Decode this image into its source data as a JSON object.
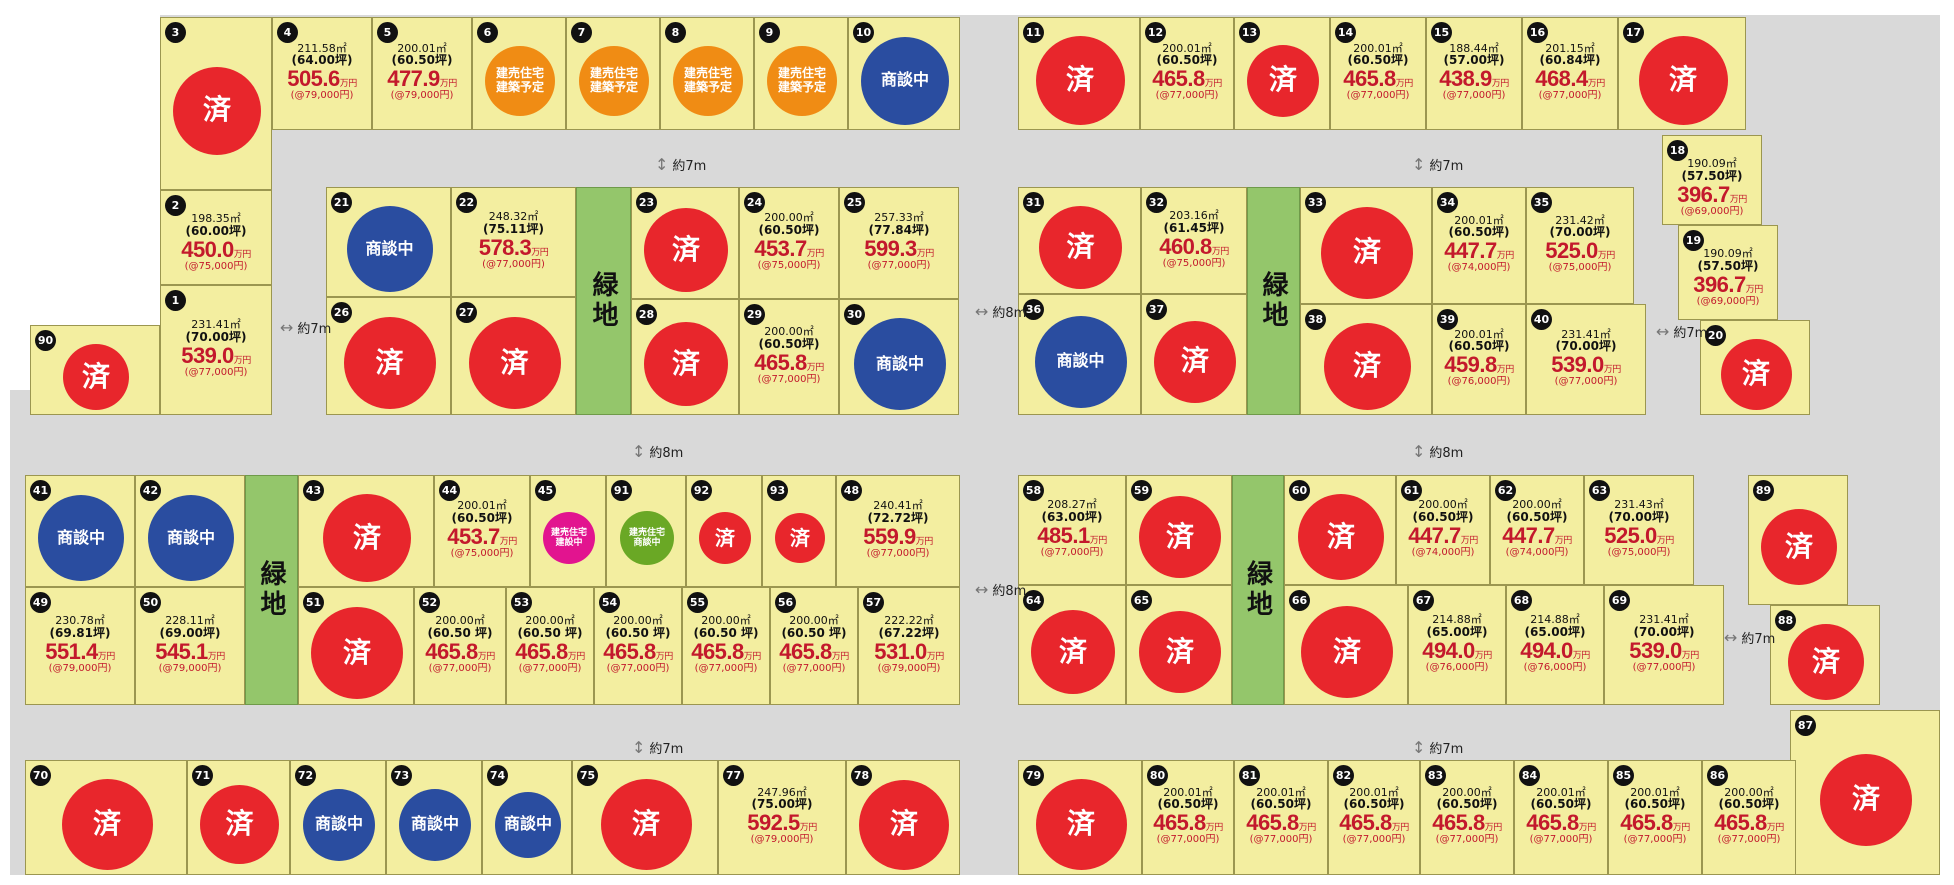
{
  "labels": {
    "sold": "済",
    "nego": "商談中",
    "plan": "建売住宅\n建築予定",
    "building": "建売住宅\n建設中",
    "negoHouse": "建売住宅\n商談中",
    "green": "緑地",
    "unit": "万円"
  },
  "colors": {
    "lot": "#f3eea0",
    "road": "#d9d9d9",
    "sold": "#e8262c",
    "nego": "#2a4da0",
    "plan": "#f08c14",
    "building": "#e2148f",
    "green": "#94c66b",
    "price": "#c3192c"
  },
  "greens": [
    {
      "label": "緑地"
    },
    {
      "label": "緑地"
    },
    {
      "label": "緑地"
    },
    {
      "label": "緑地"
    }
  ],
  "distances": [
    {
      "text": "約7m"
    },
    {
      "text": "約7m"
    },
    {
      "text": "約7m"
    },
    {
      "text": "約8m"
    },
    {
      "text": "約8m"
    },
    {
      "text": "約7m"
    },
    {
      "text": "約8m"
    },
    {
      "text": "約8m"
    },
    {
      "text": "約7m"
    },
    {
      "text": "約7m"
    },
    {
      "text": "約7m"
    }
  ],
  "lots": [
    {
      "num": "3",
      "status": "sold"
    },
    {
      "num": "4",
      "area": "211.58㎡",
      "tsubo": "(64.00坪)",
      "price": "505.6",
      "per": "(@79,000円)"
    },
    {
      "num": "5",
      "area": "200.01㎡",
      "tsubo": "(60.50坪)",
      "price": "477.9",
      "per": "(@79,000円)"
    },
    {
      "num": "6",
      "status": "plan"
    },
    {
      "num": "7",
      "status": "plan"
    },
    {
      "num": "8",
      "status": "plan"
    },
    {
      "num": "9",
      "status": "plan"
    },
    {
      "num": "10",
      "status": "nego"
    },
    {
      "num": "2",
      "area": "198.35㎡",
      "tsubo": "(60.00坪)",
      "price": "450.0",
      "per": "(@75,000円)"
    },
    {
      "num": "1",
      "area": "231.41㎡",
      "tsubo": "(70.00坪)",
      "price": "539.0",
      "per": "(@77,000円)"
    },
    {
      "num": "90",
      "status": "sold"
    },
    {
      "num": "21",
      "status": "nego"
    },
    {
      "num": "22",
      "area": "248.32㎡",
      "tsubo": "(75.11坪)",
      "price": "578.3",
      "per": "(@77,000円)"
    },
    {
      "num": "26",
      "status": "sold"
    },
    {
      "num": "27",
      "status": "sold"
    },
    {
      "num": "23",
      "status": "sold"
    },
    {
      "num": "24",
      "area": "200.00㎡",
      "tsubo": "(60.50坪)",
      "price": "453.7",
      "per": "(@75,000円)"
    },
    {
      "num": "25",
      "area": "257.33㎡",
      "tsubo": "(77.84坪)",
      "price": "599.3",
      "per": "(@77,000円)"
    },
    {
      "num": "28",
      "status": "sold"
    },
    {
      "num": "29",
      "area": "200.00㎡",
      "tsubo": "(60.50坪)",
      "price": "465.8",
      "per": "(@77,000円)"
    },
    {
      "num": "30",
      "status": "nego"
    },
    {
      "num": "11",
      "status": "sold"
    },
    {
      "num": "12",
      "area": "200.01㎡",
      "tsubo": "(60.50坪)",
      "price": "465.8",
      "per": "(@77,000円)"
    },
    {
      "num": "13",
      "status": "sold"
    },
    {
      "num": "14",
      "area": "200.01㎡",
      "tsubo": "(60.50坪)",
      "price": "465.8",
      "per": "(@77,000円)"
    },
    {
      "num": "15",
      "area": "188.44㎡",
      "tsubo": "(57.00坪)",
      "price": "438.9",
      "per": "(@77,000円)"
    },
    {
      "num": "16",
      "area": "201.15㎡",
      "tsubo": "(60.84坪)",
      "price": "468.4",
      "per": "(@77,000円)"
    },
    {
      "num": "17",
      "status": "sold"
    },
    {
      "num": "18",
      "area": "190.09㎡",
      "tsubo": "(57.50坪)",
      "price": "396.7",
      "per": "(@69,000円)"
    },
    {
      "num": "19",
      "area": "190.09㎡",
      "tsubo": "(57.50坪)",
      "price": "396.7",
      "per": "(@69,000円)"
    },
    {
      "num": "20",
      "status": "sold"
    },
    {
      "num": "31",
      "status": "sold"
    },
    {
      "num": "32",
      "area": "203.16㎡",
      "tsubo": "(61.45坪)",
      "price": "460.8",
      "per": "(@75,000円)"
    },
    {
      "num": "36",
      "status": "nego"
    },
    {
      "num": "37",
      "status": "sold"
    },
    {
      "num": "33",
      "status": "sold"
    },
    {
      "num": "34",
      "area": "200.01㎡",
      "tsubo": "(60.50坪)",
      "price": "447.7",
      "per": "(@74,000円)"
    },
    {
      "num": "35",
      "area": "231.42㎡",
      "tsubo": "(70.00坪)",
      "price": "525.0",
      "per": "(@75,000円)"
    },
    {
      "num": "38",
      "status": "sold"
    },
    {
      "num": "39",
      "area": "200.01㎡",
      "tsubo": "(60.50坪)",
      "price": "459.8",
      "per": "(@76,000円)"
    },
    {
      "num": "40",
      "area": "231.41㎡",
      "tsubo": "(70.00坪)",
      "price": "539.0",
      "per": "(@77,000円)"
    },
    {
      "num": "41",
      "status": "nego"
    },
    {
      "num": "42",
      "status": "nego"
    },
    {
      "num": "49",
      "area": "230.78㎡",
      "tsubo": "(69.81坪)",
      "price": "551.4",
      "per": "(@79,000円)"
    },
    {
      "num": "50",
      "area": "228.11㎡",
      "tsubo": "(69.00坪)",
      "price": "545.1",
      "per": "(@79,000円)"
    },
    {
      "num": "43",
      "status": "sold"
    },
    {
      "num": "44",
      "area": "200.01㎡",
      "tsubo": "(60.50坪)",
      "price": "453.7",
      "per": "(@75,000円)"
    },
    {
      "num": "45",
      "status": "building"
    },
    {
      "num": "91",
      "status": "negoHouse"
    },
    {
      "num": "92",
      "status": "soldSmall"
    },
    {
      "num": "93",
      "status": "soldSmall"
    },
    {
      "num": "48",
      "area": "240.41㎡",
      "tsubo": "(72.72坪)",
      "price": "559.9",
      "per": "(@77,000円)"
    },
    {
      "num": "51",
      "status": "sold"
    },
    {
      "num": "52",
      "area": "200.00㎡",
      "tsubo": "(60.50 坪)",
      "price": "465.8",
      "per": "(@77,000円)"
    },
    {
      "num": "53",
      "area": "200.00㎡",
      "tsubo": "(60.50 坪)",
      "price": "465.8",
      "per": "(@77,000円)"
    },
    {
      "num": "54",
      "area": "200.00㎡",
      "tsubo": "(60.50 坪)",
      "price": "465.8",
      "per": "(@77,000円)"
    },
    {
      "num": "55",
      "area": "200.00㎡",
      "tsubo": "(60.50 坪)",
      "price": "465.8",
      "per": "(@77,000円)"
    },
    {
      "num": "56",
      "area": "200.00㎡",
      "tsubo": "(60.50 坪)",
      "price": "465.8",
      "per": "(@77,000円)"
    },
    {
      "num": "57",
      "area": "222.22㎡",
      "tsubo": "(67.22坪)",
      "price": "531.0",
      "per": "(@79,000円)"
    },
    {
      "num": "58",
      "area": "208.27㎡",
      "tsubo": "(63.00坪)",
      "price": "485.1",
      "per": "(@77,000円)"
    },
    {
      "num": "59",
      "status": "sold"
    },
    {
      "num": "64",
      "status": "sold"
    },
    {
      "num": "65",
      "status": "sold"
    },
    {
      "num": "60",
      "status": "sold"
    },
    {
      "num": "61",
      "area": "200.00㎡",
      "tsubo": "(60.50坪)",
      "price": "447.7",
      "per": "(@74,000円)"
    },
    {
      "num": "62",
      "area": "200.00㎡",
      "tsubo": "(60.50坪)",
      "price": "447.7",
      "per": "(@74,000円)"
    },
    {
      "num": "63",
      "area": "231.43㎡",
      "tsubo": "(70.00坪)",
      "price": "525.0",
      "per": "(@75,000円)"
    },
    {
      "num": "66",
      "status": "sold"
    },
    {
      "num": "67",
      "area": "214.88㎡",
      "tsubo": "(65.00坪)",
      "price": "494.0",
      "per": "(@76,000円)"
    },
    {
      "num": "68",
      "area": "214.88㎡",
      "tsubo": "(65.00坪)",
      "price": "494.0",
      "per": "(@76,000円)"
    },
    {
      "num": "69",
      "area": "231.41㎡",
      "tsubo": "(70.00坪)",
      "price": "539.0",
      "per": "(@77,000円)"
    },
    {
      "num": "89",
      "status": "sold"
    },
    {
      "num": "88",
      "status": "sold"
    },
    {
      "num": "87",
      "status": "sold"
    },
    {
      "num": "70",
      "status": "sold"
    },
    {
      "num": "71",
      "status": "sold"
    },
    {
      "num": "72",
      "status": "nego"
    },
    {
      "num": "73",
      "status": "nego"
    },
    {
      "num": "74",
      "status": "nego"
    },
    {
      "num": "75",
      "status": "sold"
    },
    {
      "num": "77",
      "area": "247.96㎡",
      "tsubo": "(75.00坪)",
      "price": "592.5",
      "per": "(@79,000円)"
    },
    {
      "num": "78",
      "status": "sold"
    },
    {
      "num": "79",
      "status": "sold"
    },
    {
      "num": "80",
      "area": "200.01㎡",
      "tsubo": "(60.50坪)",
      "price": "465.8",
      "per": "(@77,000円)"
    },
    {
      "num": "81",
      "area": "200.01㎡",
      "tsubo": "(60.50坪)",
      "price": "465.8",
      "per": "(@77,000円)"
    },
    {
      "num": "82",
      "area": "200.01㎡",
      "tsubo": "(60.50坪)",
      "price": "465.8",
      "per": "(@77,000円)"
    },
    {
      "num": "83",
      "area": "200.00㎡",
      "tsubo": "(60.50坪)",
      "price": "465.8",
      "per": "(@77,000円)"
    },
    {
      "num": "84",
      "area": "200.01㎡",
      "tsubo": "(60.50坪)",
      "price": "465.8",
      "per": "(@77,000円)"
    },
    {
      "num": "85",
      "area": "200.01㎡",
      "tsubo": "(60.50坪)",
      "price": "465.8",
      "per": "(@77,000円)"
    },
    {
      "num": "86",
      "area": "200.00㎡",
      "tsubo": "(60.50坪)",
      "price": "465.8",
      "per": "(@77,000円)"
    }
  ]
}
